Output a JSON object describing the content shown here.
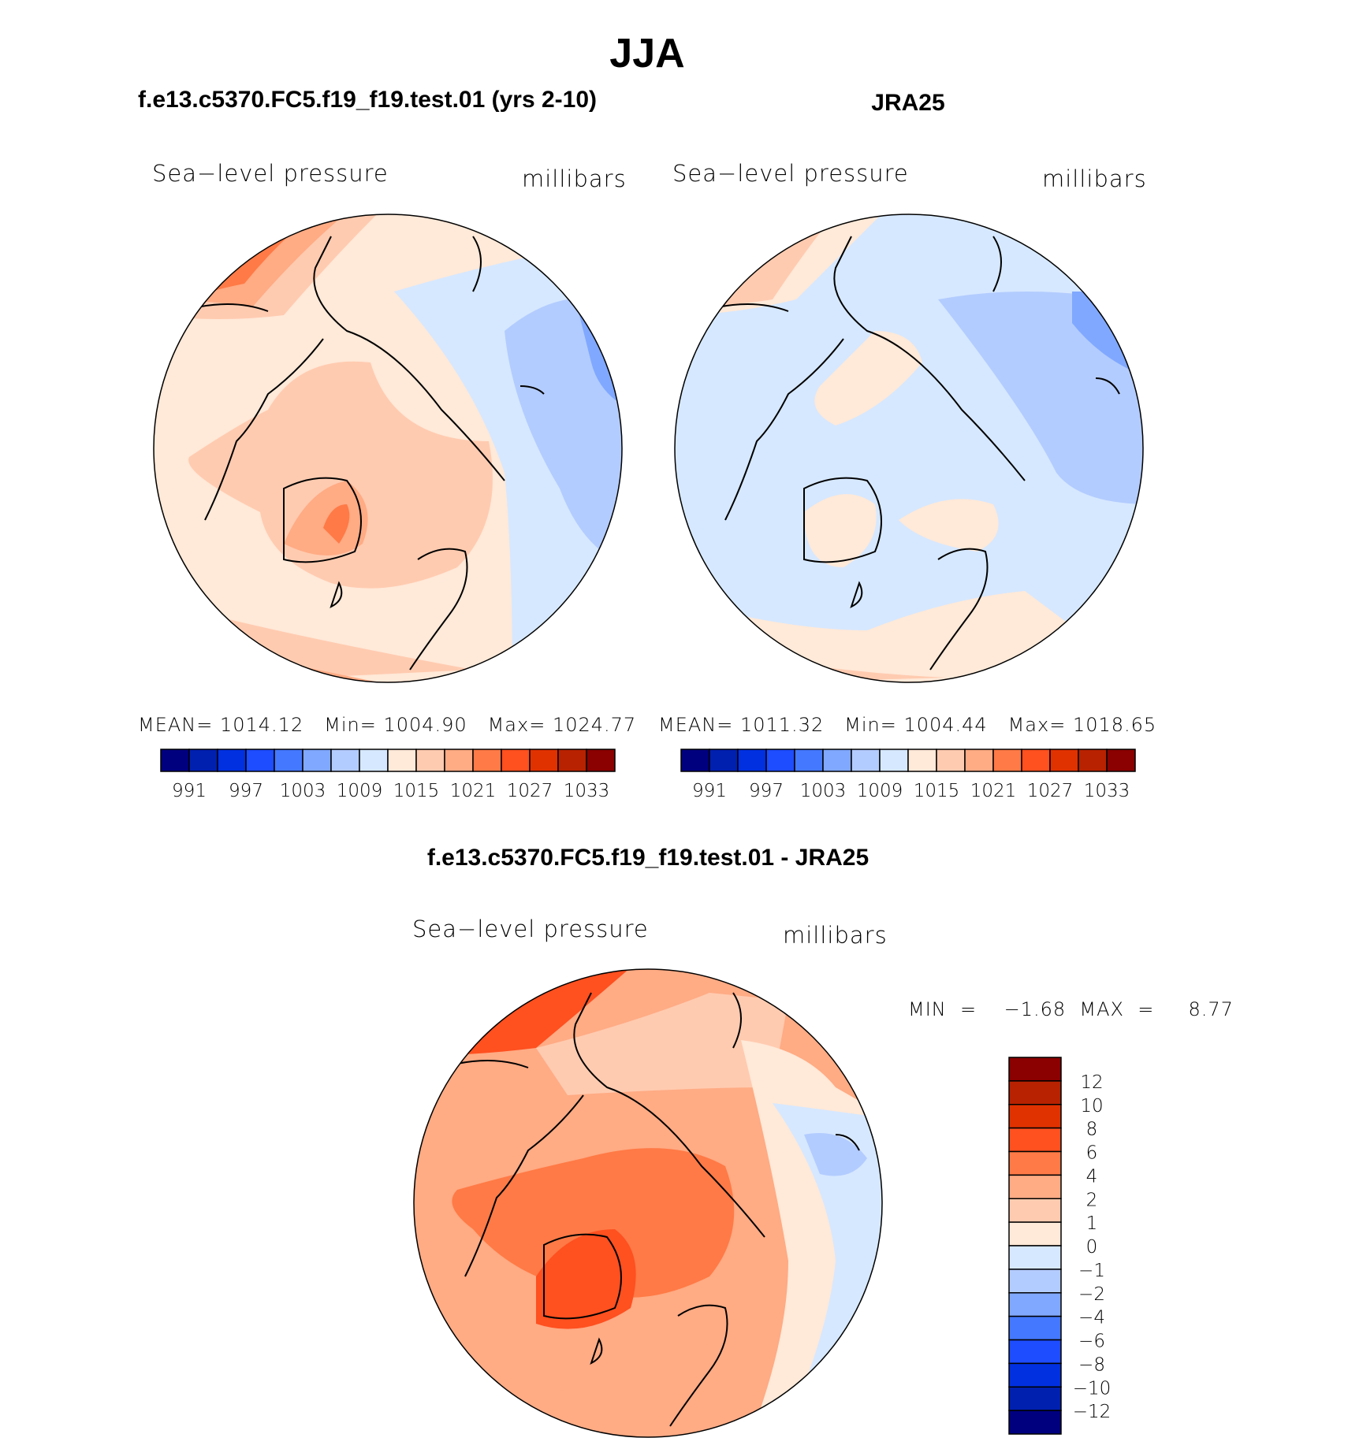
{
  "main_title": "JJA",
  "panels": [
    {
      "title": "f.e13.c5370.FC5.f19_f19.test.01 (yrs 2-10)",
      "left_label": "Sea−level pressure",
      "right_label": "millibars",
      "stats": {
        "mean": "MEAN=  1014.12",
        "min": "Min=  1004.90",
        "max": "Max=  1024.77"
      }
    },
    {
      "title": "JRA25",
      "left_label": "Sea−level pressure",
      "right_label": "millibars",
      "stats": {
        "mean": "MEAN=  1011.32",
        "min": "Min=  1004.44",
        "max": "Max=  1018.65"
      }
    },
    {
      "title": "f.e13.c5370.FC5.f19_f19.test.01 - JRA25",
      "left_label": "Sea−level pressure",
      "right_label": "millibars",
      "stats": {
        "minmax": "MIN  =    −1.68  MAX  =     8.77"
      }
    }
  ],
  "chart_data": [
    {
      "type": "heatmap",
      "title": "f.e13.c5370.FC5.f19_f19.test.01 (yrs 2-10)",
      "variable": "Sea-level pressure",
      "units": "millibars",
      "projection": "north polar stereographic",
      "levels": [
        991,
        994,
        997,
        1000,
        1003,
        1006,
        1009,
        1012,
        1015,
        1018,
        1021,
        1024,
        1027,
        1030,
        1033
      ],
      "tick_labels": [
        "991",
        "997",
        "1003",
        "1009",
        "1015",
        "1021",
        "1027",
        "1033"
      ],
      "mean": 1014.12,
      "min": 1004.9,
      "max": 1024.77
    },
    {
      "type": "heatmap",
      "title": "JRA25",
      "variable": "Sea-level pressure",
      "units": "millibars",
      "projection": "north polar stereographic",
      "levels": [
        991,
        994,
        997,
        1000,
        1003,
        1006,
        1009,
        1012,
        1015,
        1018,
        1021,
        1024,
        1027,
        1030,
        1033
      ],
      "tick_labels": [
        "991",
        "997",
        "1003",
        "1009",
        "1015",
        "1021",
        "1027",
        "1033"
      ],
      "mean": 1011.32,
      "min": 1004.44,
      "max": 1018.65
    },
    {
      "type": "heatmap",
      "title": "f.e13.c5370.FC5.f19_f19.test.01 - JRA25",
      "variable": "Sea-level pressure",
      "units": "millibars",
      "projection": "north polar stereographic",
      "levels": [
        -12,
        -10,
        -8,
        -6,
        -4,
        -2,
        -1,
        0,
        1,
        2,
        4,
        6,
        8,
        10,
        12
      ],
      "tick_labels": [
        "−12",
        "−10",
        "−8",
        "−6",
        "−4",
        "−2",
        "−1",
        "0",
        "1",
        "2",
        "4",
        "6",
        "8",
        "10",
        "12"
      ],
      "min": -1.68,
      "max": 8.77
    }
  ],
  "palette": [
    "#00007f",
    "#0020b0",
    "#0030e0",
    "#1e4cff",
    "#4478ff",
    "#80a8ff",
    "#b3ccff",
    "#d6e8ff",
    "#ffe9d8",
    "#ffcbb0",
    "#ffab84",
    "#ff7a46",
    "#ff5020",
    "#e03200",
    "#b82200",
    "#8b0000"
  ]
}
